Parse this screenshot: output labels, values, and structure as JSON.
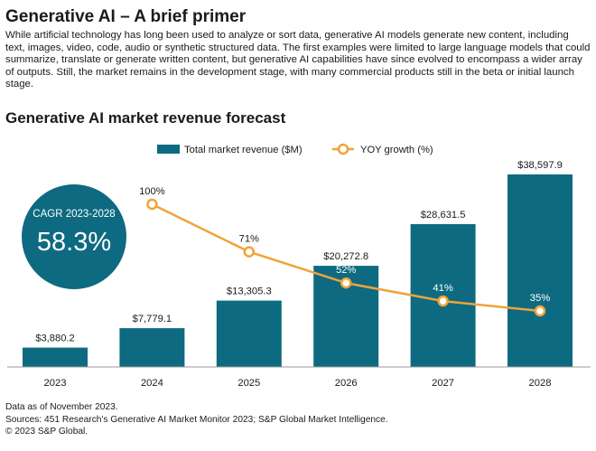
{
  "header": {
    "title": "Generative AI – A brief primer",
    "intro": "While artificial technology has long been used to analyze or sort data, generative AI models generate new content, including text, images, video, code, audio or synthetic structured data. The first examples were limited to large language models that could summarize, translate or generate written content, but generative AI capabilities have since evolved to encompass a wider array of outputs. Still, the market remains in the development stage, with many commercial products still in the beta or initial launch stage."
  },
  "chart_data": {
    "type": "bar",
    "title": "Generative AI market revenue forecast",
    "categories": [
      "2023",
      "2024",
      "2025",
      "2026",
      "2027",
      "2028"
    ],
    "series": [
      {
        "name": "Total market revenue ($M)",
        "type": "bar",
        "values": [
          3880.2,
          7779.1,
          13305.3,
          20272.8,
          28631.5,
          38597.9
        ],
        "labels": [
          "$3,880.2",
          "$7,779.1",
          "$13,305.3",
          "$20,272.8",
          "$28,631.5",
          "$38,597.9"
        ],
        "color": "#0e6a80"
      },
      {
        "name": "YOY growth (%)",
        "type": "line",
        "values": [
          null,
          100,
          71,
          52,
          41,
          35
        ],
        "labels": [
          "",
          "100%",
          "71%",
          "52%",
          "41%",
          "35%"
        ],
        "color": "#f0a33a"
      }
    ],
    "legend": "top-center",
    "grid": false,
    "callout": {
      "label": "CAGR 2023-2028",
      "value": "58.3%",
      "color": "#0e6a80"
    }
  },
  "footer": {
    "notes": [
      "Data as of November 2023.",
      "Sources: 451 Research's Generative AI Market Monitor 2023; S&P Global Market Intelligence.",
      "© 2023 S&P Global."
    ]
  }
}
